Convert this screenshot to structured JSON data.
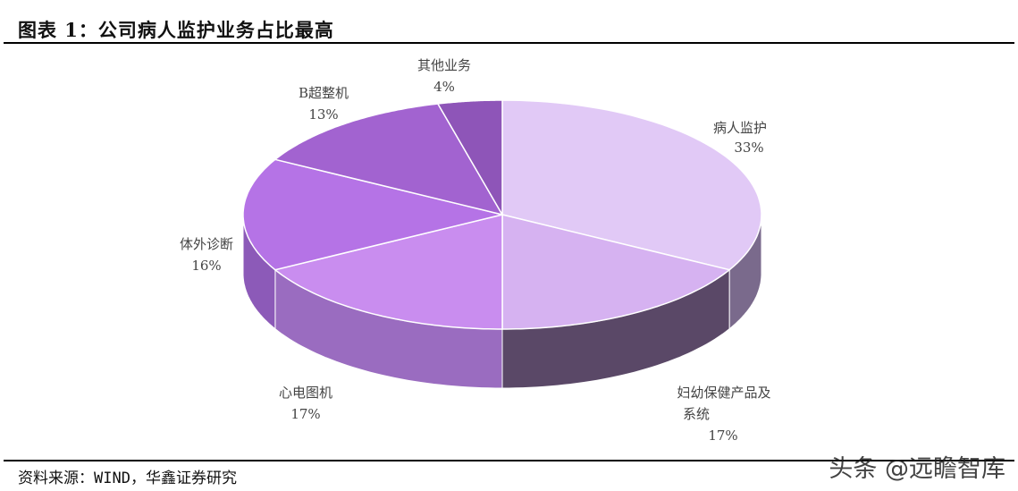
{
  "title": "图表 1：公司病人监护业务占比最高",
  "source": "资料来源：WIND，华鑫证券研究",
  "watermark": "头条 @远瞻智库",
  "chart_data": {
    "type": "pie",
    "style": "3d",
    "start": "top, clockwise",
    "slices": [
      {
        "label": "病人监护",
        "value": 33,
        "pct": "33%",
        "color": "#e1c9f6",
        "side": "#7a6a8c"
      },
      {
        "label": "妇幼保健产品及系统",
        "label_lines": [
          "妇幼保健产品及",
          "系统"
        ],
        "value": 17,
        "pct": "17%",
        "color": "#d6b2f1",
        "side": "#5a4867"
      },
      {
        "label": "心电图机",
        "value": 17,
        "pct": "17%",
        "color": "#c98def",
        "side": "#9a6cc0"
      },
      {
        "label": "体外诊断",
        "value": 16,
        "pct": "16%",
        "color": "#b573e6",
        "side": "#8c5ab8"
      },
      {
        "label": "B超整机",
        "value": 13,
        "pct": "13%",
        "color": "#a263d0",
        "side": "#7d4aa6"
      },
      {
        "label": "其他业务",
        "value": 4,
        "pct": "4%",
        "color": "#8e55b8",
        "side": "#6b3f8f"
      }
    ]
  }
}
